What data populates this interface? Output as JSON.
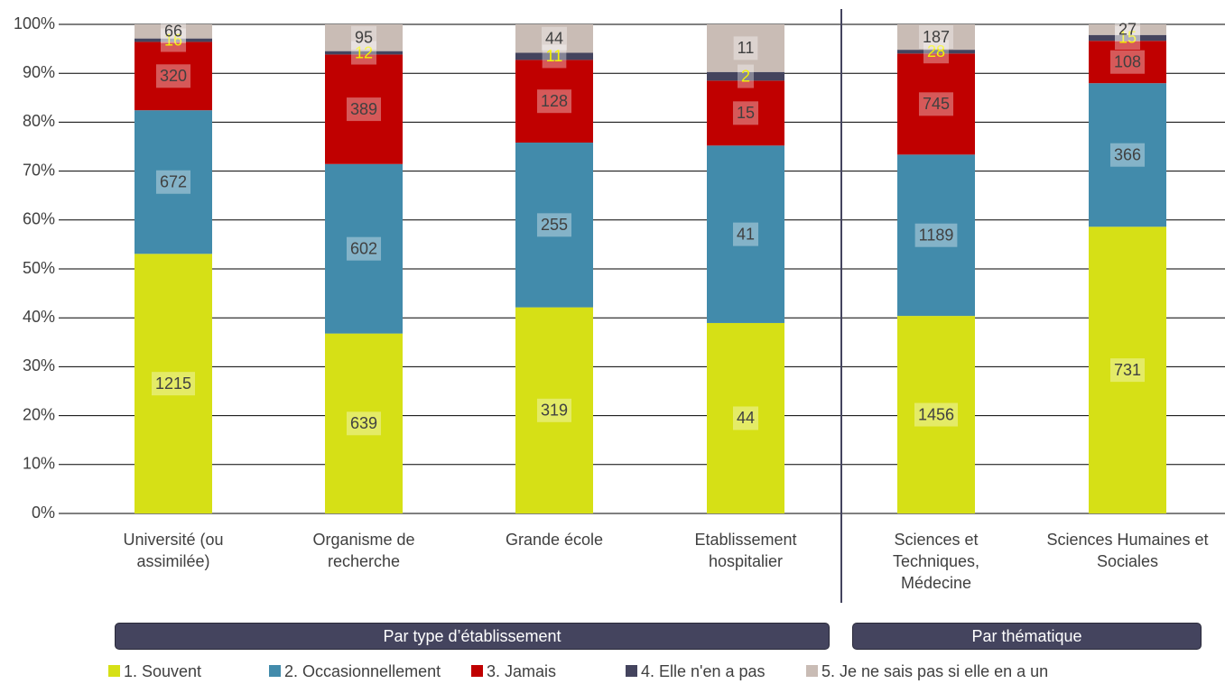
{
  "chart_data": {
    "type": "bar",
    "stacking": "percent",
    "categories": [
      "Université (ou assimilée)",
      "Organisme de recherche",
      "Grande école",
      "Etablissement hospitalier",
      "Sciences et Techniques, Médecine",
      "Sciences Humaines et Sociales"
    ],
    "series": [
      {
        "name": "1. Souvent",
        "color": "#d6e016",
        "label_color": "#404040",
        "values": [
          1215,
          639,
          319,
          44,
          1456,
          731
        ]
      },
      {
        "name": "2. Occasionnellement",
        "color": "#428bab",
        "label_color": "#404040",
        "values": [
          672,
          602,
          255,
          41,
          1189,
          366
        ]
      },
      {
        "name": "3. Jamais",
        "color": "#c00000",
        "label_color": "#404040",
        "values": [
          320,
          389,
          128,
          15,
          745,
          108
        ]
      },
      {
        "name": "4. Elle n'en a pas",
        "color": "#44445e",
        "label_color": "#f2f200",
        "values": [
          16,
          12,
          11,
          2,
          28,
          15
        ]
      },
      {
        "name": "5. Je ne sais pas si elle en a un",
        "color": "#c9bcb5",
        "label_color": "#404040",
        "values": [
          66,
          95,
          44,
          11,
          187,
          27
        ]
      }
    ],
    "ylim": [
      0,
      100
    ],
    "yticks": [
      {
        "value": 0,
        "label": "0%"
      },
      {
        "value": 10,
        "label": "10%"
      },
      {
        "value": 20,
        "label": "20%"
      },
      {
        "value": 30,
        "label": "30%"
      },
      {
        "value": 40,
        "label": "40%"
      },
      {
        "value": 50,
        "label": "50%"
      },
      {
        "value": 60,
        "label": "60%"
      },
      {
        "value": 70,
        "label": "70%"
      },
      {
        "value": 80,
        "label": "80%"
      },
      {
        "value": 90,
        "label": "90%"
      },
      {
        "value": 100,
        "label": "100%"
      }
    ],
    "grid": true,
    "groups": [
      "Par type d’établissement",
      "Par thématique"
    ],
    "legend": "bottom"
  }
}
